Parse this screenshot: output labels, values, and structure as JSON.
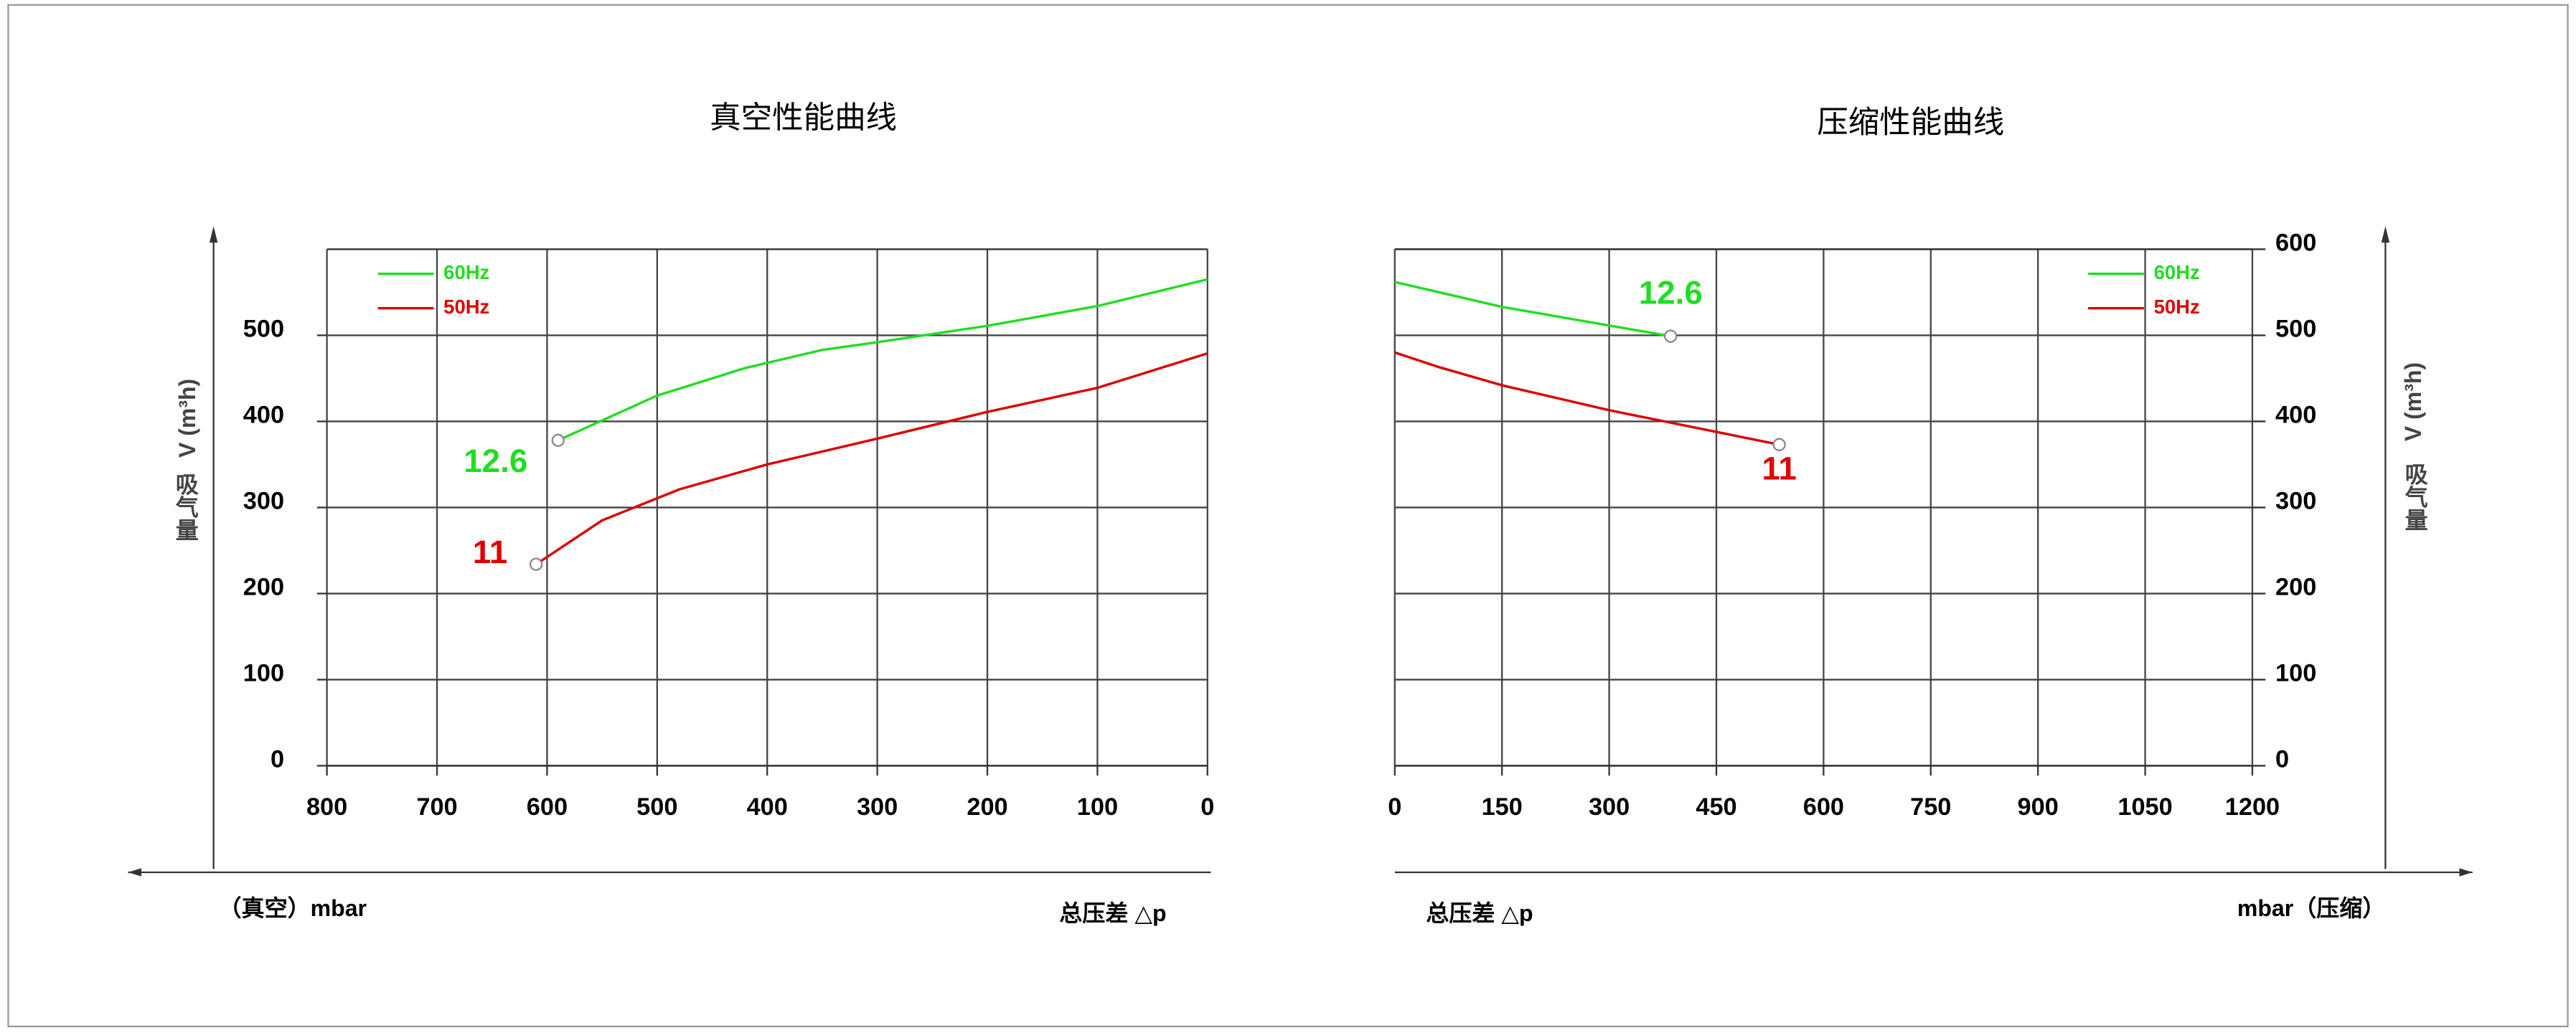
{
  "chart_data": [
    {
      "type": "line",
      "title": "真空性能曲线",
      "xlabel": "总压差 △p",
      "xunit": "（真空）mbar",
      "ylabel": "V (m³h)",
      "ylabel_cn": "吸气量",
      "xlim": [
        800,
        0
      ],
      "xticks": [
        800,
        700,
        600,
        500,
        400,
        300,
        200,
        100,
        0
      ],
      "ylim": [
        0,
        600
      ],
      "yticks": [
        0,
        100,
        200,
        300,
        400,
        500
      ],
      "yaxis": "left",
      "legend": "upper left",
      "grid": true,
      "series": [
        {
          "name": "60Hz",
          "color": "#22dd22",
          "annotation": "12.6",
          "x": [
            590,
            500,
            420,
            350,
            300,
            200,
            100,
            0
          ],
          "values": [
            378,
            430,
            462,
            483,
            492,
            511,
            534,
            565
          ]
        },
        {
          "name": "50Hz",
          "color": "#dd0000",
          "annotation": "11",
          "x": [
            610,
            550,
            480,
            400,
            300,
            200,
            100,
            0
          ],
          "values": [
            234,
            285,
            321,
            350,
            380,
            411,
            439,
            479
          ]
        }
      ]
    },
    {
      "type": "line",
      "title": "压缩性能曲线",
      "xlabel": "总压差 △p",
      "xunit": "mbar（压缩）",
      "ylabel": "V (m³h)",
      "ylabel_cn": "吸气量",
      "xlim": [
        0,
        1200
      ],
      "xticks": [
        0,
        150,
        300,
        450,
        600,
        750,
        900,
        1050,
        1200
      ],
      "ylim": [
        0,
        600
      ],
      "yticks": [
        0,
        100,
        200,
        300,
        400,
        500,
        600
      ],
      "yaxis": "right",
      "legend": "upper right",
      "grid": true,
      "series": [
        {
          "name": "60Hz",
          "color": "#22dd22",
          "annotation": "12.6",
          "x": [
            0,
            150,
            386
          ],
          "values": [
            562,
            533,
            499
          ]
        },
        {
          "name": "50Hz",
          "color": "#dd0000",
          "annotation": "11",
          "x": [
            0,
            62,
            150,
            300,
            538
          ],
          "values": [
            480,
            463,
            442,
            413,
            373
          ]
        }
      ]
    }
  ]
}
